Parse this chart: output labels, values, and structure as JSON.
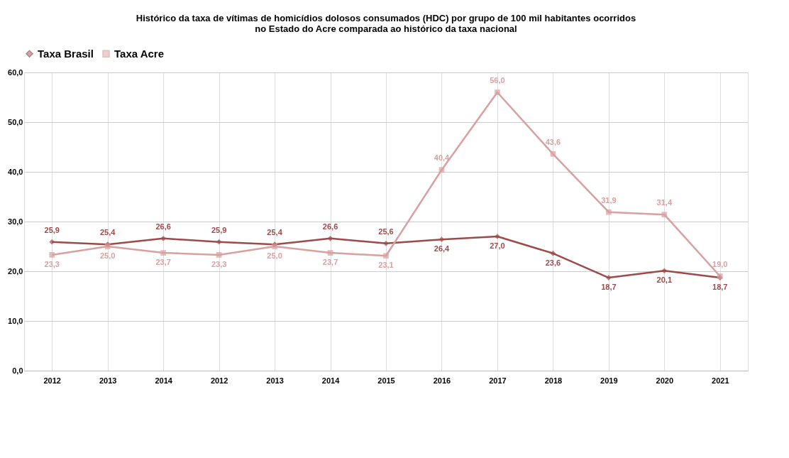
{
  "chart_data": {
    "type": "line",
    "title": [
      "Histórico da taxa de vítimas de homicídios dolosos consumados (HDC) por grupo de 100 mil habitantes ocorridos",
      "no Estado do Acre comparada ao histórico da taxa nacional"
    ],
    "categories": [
      "2012",
      "2013",
      "2014",
      "2012",
      "2013",
      "2014",
      "2015",
      "2016",
      "2017",
      "2018",
      "2019",
      "2020",
      "2021"
    ],
    "series": [
      {
        "name": "Taxa Brasil",
        "color": "#9e4a4a",
        "marker": "diamond",
        "values": [
          25.9,
          25.4,
          26.6,
          25.9,
          25.4,
          26.6,
          25.6,
          26.4,
          27.0,
          23.6,
          18.7,
          20.1,
          18.7
        ],
        "value_labels": [
          "25,9",
          "25,4",
          "26,6",
          "25,9",
          "25,4",
          "26,6",
          "25,6",
          "26,4",
          "27,0",
          "23,6",
          "18,7",
          "20,1",
          "18,7"
        ]
      },
      {
        "name": "Taxa Acre",
        "color": "#d9a0a0",
        "marker": "square",
        "values": [
          23.3,
          25.0,
          23.7,
          23.3,
          25.0,
          23.7,
          23.1,
          40.4,
          56.0,
          43.6,
          31.9,
          31.4,
          19.0
        ],
        "value_labels": [
          "23,3",
          "25,0",
          "23,7",
          "23,3",
          "25,0",
          "23,7",
          "23,1",
          "40,4",
          "56,0",
          "43,6",
          "31,9",
          "31,4",
          "19,0"
        ]
      }
    ],
    "ylim": [
      0,
      60
    ],
    "yticks": [
      {
        "value": 0,
        "label": "0,0"
      },
      {
        "value": 10,
        "label": "10,0"
      },
      {
        "value": 20,
        "label": "20,0"
      },
      {
        "value": 30,
        "label": "30,0"
      },
      {
        "value": 40,
        "label": "40,0"
      },
      {
        "value": 50,
        "label": "50,0"
      },
      {
        "value": 60,
        "label": "60,0"
      }
    ],
    "grid": true,
    "legend": "top",
    "line_style": "solid"
  }
}
